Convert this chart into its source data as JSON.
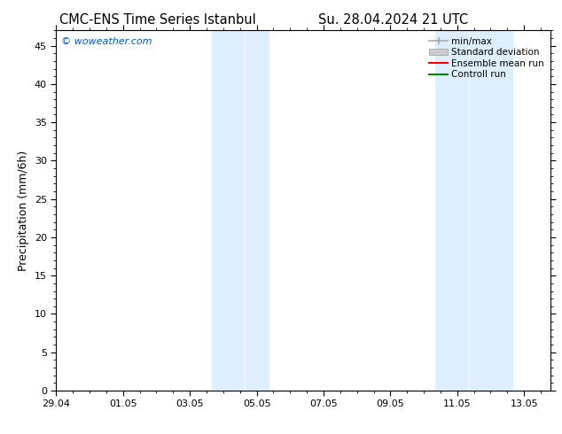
{
  "title_left": "CMC-ENS Time Series Istanbul",
  "title_right": "Su. 28.04.2024 21 UTC",
  "ylabel": "Precipitation (mm/6h)",
  "background_color": "#ffffff",
  "plot_bg_color": "#ffffff",
  "watermark": "© woweather.com",
  "watermark_color": "#0055bb",
  "x_tick_labels": [
    "29.04",
    "01.05",
    "03.05",
    "05.05",
    "07.05",
    "09.05",
    "11.05",
    "13.05"
  ],
  "x_tick_positions": [
    0,
    2,
    4,
    6,
    8,
    10,
    12,
    14
  ],
  "xlim": [
    0,
    14.8
  ],
  "ylim": [
    0,
    47
  ],
  "yticks": [
    0,
    5,
    10,
    15,
    20,
    25,
    30,
    35,
    40,
    45
  ],
  "band1_x0": 4.65,
  "band1_x1": 6.35,
  "band2_x0": 11.35,
  "band2_x1": 13.65,
  "band_color": "#ddeeff",
  "band_divider1": 5.65,
  "band_divider2": 12.35,
  "tick_color": "#000000",
  "spine_color": "#000000",
  "font_family": "DejaVu Sans",
  "title_fontsize": 10.5,
  "label_fontsize": 9,
  "tick_fontsize": 8,
  "legend_fontsize": 7.5,
  "minmax_color": "#aaaaaa",
  "stddev_color": "#cccccc",
  "mean_color": "#ff0000",
  "control_color": "#008800"
}
